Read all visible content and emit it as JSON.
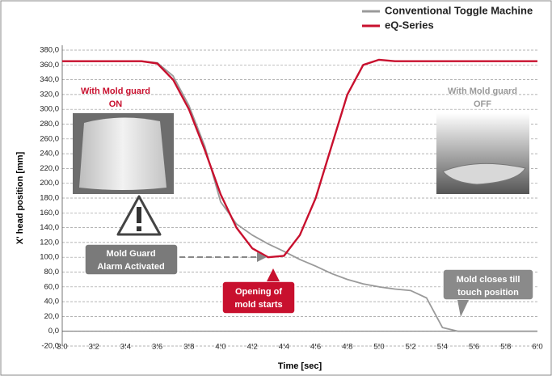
{
  "chart_data": {
    "type": "line",
    "x_label": "Time [sec]",
    "y_label": "X' head position [mm]",
    "x": [
      3.0,
      3.5,
      3.6,
      3.7,
      3.8,
      3.9,
      4.0,
      4.1,
      4.2,
      4.3,
      4.4,
      4.5,
      4.6,
      4.7,
      4.8,
      4.9,
      5.0,
      5.1,
      5.2,
      5.3,
      5.4,
      5.5,
      6.0
    ],
    "series": [
      {
        "name": "Conventional Toggle Machine",
        "color": "#9a9a9a",
        "values": [
          365,
          365,
          363,
          345,
          305,
          250,
          175,
          145,
          130,
          118,
          108,
          97,
          88,
          78,
          70,
          64,
          60,
          57,
          55,
          45,
          5,
          0,
          0
        ]
      },
      {
        "name": "eQ-Series",
        "color": "#c8102e",
        "values": [
          365,
          365,
          362,
          340,
          300,
          245,
          185,
          140,
          112,
          100,
          102,
          130,
          180,
          250,
          320,
          360,
          367,
          365,
          365,
          365,
          365,
          365,
          365
        ]
      }
    ],
    "xlim": [
      3.0,
      6.0
    ],
    "xticks": [
      {
        "value": 3.0,
        "label": "3.0"
      },
      3.2,
      3.4,
      3.6,
      3.8,
      {
        "value": 4.0,
        "label": "4.0"
      },
      4.2,
      4.4,
      4.6,
      4.8,
      {
        "value": 5.0,
        "label": "5.0"
      },
      5.2,
      5.4,
      5.6,
      5.8,
      {
        "value": 6.0,
        "label": "6.0"
      }
    ],
    "ylim": [
      -20,
      380
    ],
    "yticks": [
      {
        "value": -20,
        "label": "-20,0"
      },
      {
        "value": 0,
        "label": "0,0"
      },
      {
        "value": 20,
        "label": "20,0"
      },
      {
        "value": 40,
        "label": "40,0"
      },
      {
        "value": 60,
        "label": "60,0"
      },
      {
        "value": 80,
        "label": "80,0"
      },
      {
        "value": 100,
        "label": "100,0"
      },
      {
        "value": 120,
        "label": "120,0"
      },
      {
        "value": 140,
        "label": "140,0"
      },
      {
        "value": 160,
        "label": "160,0"
      },
      {
        "value": 180,
        "label": "180,0"
      },
      {
        "value": 200,
        "label": "200,0"
      },
      {
        "value": 220,
        "label": "220,0"
      },
      {
        "value": 240,
        "label": "240,0"
      },
      {
        "value": 260,
        "label": "260,0"
      },
      {
        "value": 280,
        "label": "280,0"
      },
      {
        "value": 300,
        "label": "300,0"
      },
      {
        "value": 320,
        "label": "320,0"
      },
      {
        "value": 340,
        "label": "340,0"
      },
      {
        "value": 360,
        "label": "360,0"
      },
      {
        "value": 380,
        "label": "380,0"
      }
    ],
    "grid": true,
    "legend": "top-right",
    "annotations": [
      {
        "lines": [
          "With Mold guard",
          "ON"
        ]
      },
      {
        "lines": [
          "With Mold guard",
          "OFF"
        ]
      },
      {
        "lines": [
          "Mold Guard",
          "Alarm Activated"
        ]
      },
      {
        "lines": [
          "Opening of",
          "mold starts"
        ]
      },
      {
        "lines": [
          "Mold closes till",
          "touch position"
        ]
      }
    ]
  }
}
